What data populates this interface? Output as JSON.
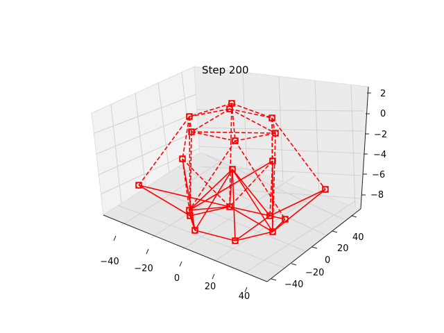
{
  "chart_data": {
    "type": "3d-wireframe",
    "title": "Step 200",
    "x_ticks": [
      "−40",
      "−20",
      "0",
      "20",
      "40"
    ],
    "y_ticks": [
      "−40",
      "−20",
      "0",
      "20",
      "40"
    ],
    "z_ticks": [
      "−8",
      "−6",
      "−4",
      "−2",
      "0",
      "2"
    ],
    "color": "#ff0000",
    "markers": [
      "circle",
      "square"
    ],
    "grid": true
  }
}
